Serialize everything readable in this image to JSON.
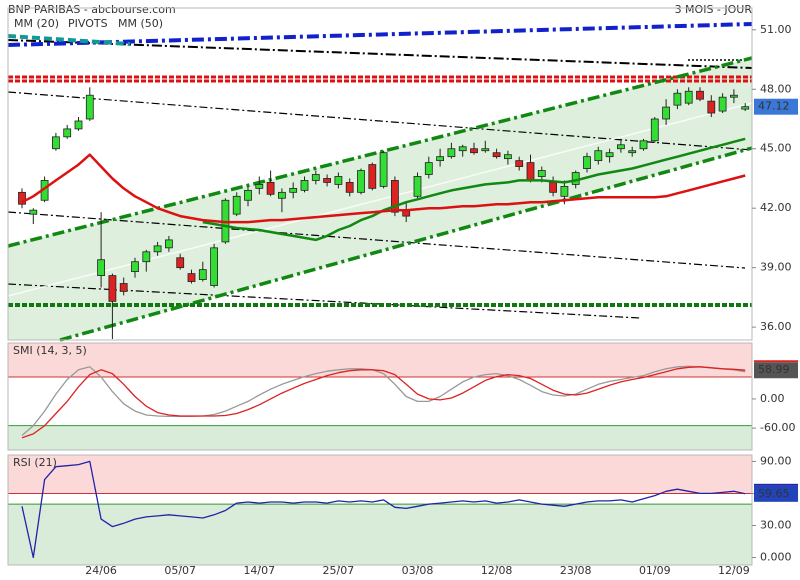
{
  "chart_data": [
    {
      "type": "candlestick",
      "title": "BNP PARIBAS - abcbourse.com",
      "subtitle": "3 MOIS - JOUR",
      "categories": [
        null,
        null,
        null,
        null,
        null,
        null,
        null,
        "24/06",
        null,
        null,
        null,
        null,
        null,
        null,
        "05/07",
        null,
        null,
        null,
        null,
        null,
        null,
        "14/07",
        null,
        null,
        null,
        null,
        null,
        null,
        "25/07",
        null,
        null,
        null,
        null,
        null,
        null,
        "03/08",
        null,
        null,
        null,
        null,
        null,
        null,
        "12/08",
        null,
        null,
        null,
        null,
        null,
        null,
        "23/08",
        null,
        null,
        null,
        null,
        null,
        null,
        "01/09",
        null,
        null,
        null,
        null,
        null,
        null,
        "12/09",
        null
      ],
      "open": [
        42.8,
        41.7,
        42.4,
        45.0,
        45.6,
        46.0,
        46.5,
        38.6,
        38.6,
        38.2,
        38.8,
        39.3,
        39.8,
        40.0,
        39.5,
        38.7,
        38.4,
        38.1,
        40.3,
        41.7,
        42.4,
        43.0,
        43.3,
        42.5,
        42.8,
        42.9,
        43.4,
        43.5,
        43.2,
        43.3,
        42.8,
        44.2,
        43.1,
        43.4,
        41.9,
        42.6,
        43.7,
        44.4,
        44.6,
        44.9,
        45.0,
        44.9,
        44.8,
        44.5,
        44.4,
        44.3,
        43.6,
        43.3,
        42.6,
        43.2,
        44.0,
        44.4,
        44.6,
        45.0,
        44.8,
        45.0,
        45.4,
        46.5,
        47.2,
        47.3,
        47.9,
        47.4,
        46.9,
        47.6,
        47.0
      ],
      "high": [
        43.0,
        42.0,
        43.6,
        45.8,
        46.2,
        46.6,
        48.1,
        41.8,
        38.7,
        38.5,
        39.5,
        39.9,
        40.3,
        40.6,
        39.7,
        38.9,
        39.3,
        40.2,
        42.5,
        42.8,
        43.1,
        43.6,
        43.9,
        43.0,
        43.3,
        43.6,
        43.9,
        43.7,
        43.8,
        43.5,
        44.0,
        44.3,
        44.9,
        43.6,
        42.3,
        43.8,
        44.6,
        45.0,
        45.3,
        45.2,
        45.3,
        45.4,
        45.0,
        44.9,
        44.6,
        44.7,
        44.1,
        43.6,
        43.4,
        43.9,
        44.8,
        45.1,
        45.0,
        45.5,
        45.1,
        45.5,
        46.6,
        47.5,
        48.0,
        48.1,
        48.1,
        47.7,
        47.8,
        48.0,
        47.3
      ],
      "low": [
        42.0,
        41.2,
        42.3,
        44.9,
        45.5,
        45.9,
        46.4,
        38.0,
        35.4,
        37.6,
        38.5,
        38.8,
        39.6,
        39.8,
        38.9,
        38.2,
        38.3,
        38.0,
        40.2,
        41.6,
        42.1,
        42.7,
        42.6,
        41.8,
        42.5,
        42.8,
        43.2,
        43.1,
        43.0,
        42.6,
        42.7,
        42.9,
        43.0,
        41.6,
        41.3,
        42.5,
        43.5,
        44.1,
        44.5,
        44.6,
        44.7,
        44.8,
        44.5,
        44.2,
        43.9,
        43.3,
        43.3,
        42.6,
        42.2,
        43.0,
        43.8,
        44.2,
        44.3,
        44.8,
        44.6,
        44.9,
        45.3,
        46.2,
        47.0,
        47.2,
        47.4,
        46.6,
        46.8,
        47.3,
        46.9
      ],
      "close": [
        42.2,
        41.9,
        43.4,
        45.6,
        46.0,
        46.4,
        47.7,
        39.4,
        37.3,
        37.8,
        39.3,
        39.8,
        40.1,
        40.4,
        39.0,
        38.3,
        38.9,
        40.0,
        42.4,
        42.6,
        42.9,
        43.2,
        42.7,
        42.8,
        43.0,
        43.4,
        43.7,
        43.3,
        43.6,
        42.8,
        43.9,
        43.0,
        44.8,
        41.8,
        41.6,
        43.6,
        44.3,
        44.6,
        45.0,
        45.1,
        44.8,
        45.0,
        44.6,
        44.7,
        44.1,
        43.4,
        43.9,
        42.8,
        43.1,
        43.8,
        44.6,
        44.9,
        44.8,
        45.2,
        44.9,
        45.4,
        46.5,
        47.1,
        47.8,
        47.9,
        47.5,
        46.8,
        47.6,
        47.7,
        47.12
      ],
      "up_color": "#33dd33",
      "down_color": "#dd2222",
      "series": [
        {
          "name": "MM (20)",
          "color": "#118811",
          "values": [
            null,
            null,
            null,
            null,
            null,
            null,
            null,
            null,
            null,
            null,
            null,
            null,
            null,
            null,
            null,
            null,
            41.3,
            41.2,
            41.1,
            41.0,
            40.95,
            40.9,
            40.8,
            40.7,
            40.6,
            40.5,
            40.4,
            40.6,
            40.9,
            41.1,
            41.4,
            41.6,
            41.9,
            42.1,
            42.3,
            42.45,
            42.6,
            42.75,
            42.9,
            43.0,
            43.1,
            43.2,
            43.25,
            43.3,
            43.4,
            43.4,
            43.4,
            43.35,
            43.3,
            43.4,
            43.55,
            43.7,
            43.8,
            43.9,
            44.0,
            44.15,
            44.3,
            44.45,
            44.6,
            44.75,
            44.9,
            45.05,
            45.2,
            45.35,
            45.5
          ]
        },
        {
          "name": "MM (50)",
          "color": "#dd1111",
          "values": [
            42.3,
            42.6,
            43.0,
            43.4,
            43.8,
            44.2,
            44.7,
            44.1,
            43.5,
            43.0,
            42.6,
            42.3,
            42.0,
            41.8,
            41.6,
            41.5,
            41.4,
            41.35,
            41.3,
            41.3,
            41.3,
            41.35,
            41.4,
            41.4,
            41.45,
            41.5,
            41.55,
            41.6,
            41.65,
            41.7,
            41.75,
            41.8,
            41.85,
            41.9,
            41.9,
            41.95,
            42.0,
            42.0,
            42.05,
            42.1,
            42.1,
            42.15,
            42.2,
            42.2,
            42.25,
            42.3,
            42.3,
            42.35,
            42.4,
            42.45,
            42.5,
            42.55,
            42.55,
            42.55,
            42.55,
            42.55,
            42.55,
            42.6,
            42.75,
            42.9,
            43.05,
            43.2,
            43.35,
            43.5,
            43.65
          ]
        }
      ],
      "pivots": {
        "name": "PIVOTS",
        "color": "#000000"
      },
      "ylim": [
        35.35,
        52.1
      ],
      "yticks": [
        {
          "value": 51,
          "label": "51.00"
        },
        {
          "value": 48,
          "label": "48.00"
        },
        {
          "value": 45,
          "label": "45.00"
        },
        {
          "value": 42,
          "label": "42.00"
        },
        {
          "value": 39,
          "label": "39.00"
        },
        {
          "value": 36,
          "label": "36.00"
        }
      ],
      "tag_color": "#3a78d8"
    },
    {
      "type": "line",
      "title": "SMI (14, 3, 5)",
      "series": [
        {
          "color": "#dd2222",
          "values": [
            -80,
            -72,
            -55,
            -30,
            -5,
            25,
            50,
            60,
            52,
            30,
            5,
            -15,
            -28,
            -33,
            -35,
            -35,
            -35,
            -35,
            -34,
            -30,
            -22,
            -12,
            0,
            12,
            22,
            32,
            40,
            48,
            54,
            58,
            60,
            60,
            58,
            50,
            30,
            10,
            0,
            -2,
            2,
            12,
            25,
            38,
            46,
            50,
            48,
            42,
            30,
            18,
            10,
            8,
            12,
            20,
            28,
            35,
            40,
            44,
            50,
            56,
            62,
            65,
            66,
            64,
            62,
            61,
            58.99
          ]
        },
        {
          "color": "#999999",
          "values": [
            -75,
            -55,
            -25,
            10,
            40,
            60,
            66,
            45,
            15,
            -10,
            -25,
            -33,
            -35,
            -36,
            -36,
            -36,
            -35,
            -32,
            -25,
            -15,
            -5,
            8,
            20,
            30,
            38,
            46,
            52,
            57,
            60,
            62,
            62,
            60,
            52,
            30,
            5,
            -5,
            -5,
            5,
            20,
            35,
            45,
            50,
            52,
            48,
            40,
            28,
            15,
            8,
            6,
            10,
            20,
            30,
            36,
            40,
            44,
            48,
            56,
            62,
            66,
            67,
            66,
            64,
            62,
            60,
            56
          ]
        }
      ],
      "ylim": [
        -105,
        115
      ],
      "yticks": [
        {
          "value": 0,
          "label": "0.00"
        },
        {
          "value": -60,
          "label": "-60.00"
        }
      ],
      "bands": [
        45,
        -55
      ],
      "tag_color": "#555555"
    },
    {
      "type": "line",
      "title": "RSI (21)",
      "series": [
        {
          "color": "#2222aa",
          "values": [
            48,
            0,
            73,
            85,
            86,
            87,
            90,
            36,
            29,
            32,
            36,
            38,
            39,
            40,
            39,
            38,
            37,
            40,
            44,
            51,
            52,
            51,
            52,
            52,
            51,
            52,
            52,
            51,
            53,
            52,
            53,
            52,
            54,
            47,
            46,
            48,
            50,
            51,
            52,
            53,
            52,
            53,
            51,
            52,
            54,
            52,
            50,
            49,
            48,
            50,
            52,
            53,
            53,
            54,
            52,
            55,
            58,
            62,
            64,
            62,
            60,
            60,
            61,
            62,
            59.65
          ]
        }
      ],
      "ylim": [
        -7,
        96
      ],
      "yticks": [
        {
          "value": 90,
          "label": "90.00"
        },
        {
          "value": 60,
          "label": "60.00"
        },
        {
          "value": 30,
          "label": "30.00"
        },
        {
          "value": 0,
          "label": "0.000"
        }
      ],
      "bands": [
        60,
        50
      ],
      "tag_color": "#2244bb"
    }
  ]
}
